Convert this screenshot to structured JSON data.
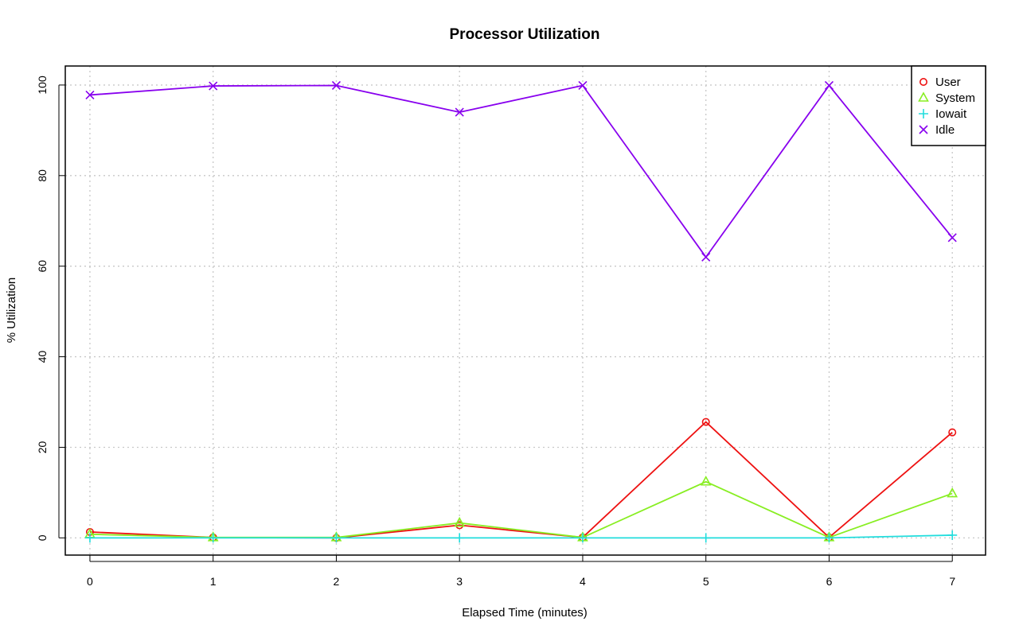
{
  "chart_data": {
    "type": "line",
    "title": "Processor Utilization",
    "xlabel": "Elapsed Time (minutes)",
    "ylabel": "% Utilization",
    "x": [
      0,
      1,
      2,
      3,
      4,
      5,
      6,
      7
    ],
    "xlim": [
      -0.2,
      7.27
    ],
    "ylim": [
      -3.8,
      104.2
    ],
    "x_ticks": [
      0,
      1,
      2,
      3,
      4,
      5,
      6,
      7
    ],
    "y_ticks": [
      0,
      20,
      40,
      60,
      80,
      100
    ],
    "grid": true,
    "legend_position": "top-right",
    "series": [
      {
        "name": "User",
        "color": "#ee1111",
        "marker": "circle",
        "values": [
          1.3,
          0.1,
          0.0,
          2.8,
          0.1,
          25.6,
          0.1,
          23.3
        ]
      },
      {
        "name": "System",
        "color": "#88ee22",
        "marker": "triangle",
        "values": [
          0.8,
          0.1,
          0.1,
          3.3,
          0.1,
          12.4,
          0.1,
          9.8
        ]
      },
      {
        "name": "Iowait",
        "color": "#22dddd",
        "marker": "plus",
        "values": [
          0.0,
          0.0,
          0.0,
          0.0,
          0.0,
          0.0,
          0.0,
          0.6
        ]
      },
      {
        "name": "Idle",
        "color": "#8800ee",
        "marker": "cross",
        "values": [
          97.8,
          99.8,
          99.9,
          94.0,
          99.9,
          62.0,
          99.9,
          66.3
        ]
      }
    ]
  }
}
